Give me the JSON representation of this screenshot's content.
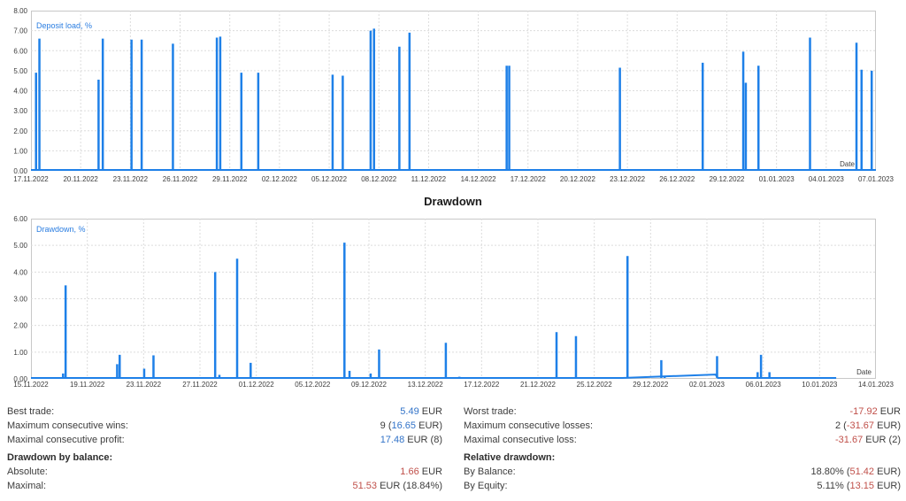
{
  "colors": {
    "series_blue": "#1e80e8",
    "legend_blue": "#2a7de1",
    "grid_dash": "#dcdcdc",
    "plot_border": "#c8c8c8",
    "axis_text": "#3c3c3c",
    "value_blue": "#3273c8",
    "value_red": "#c0504a"
  },
  "chart_data": [
    {
      "type": "line",
      "title": "",
      "legend": "Deposit load, %",
      "xlabel": "Date",
      "ylabel": "",
      "ylim": [
        0,
        8
      ],
      "grid": "dashed",
      "legend_position": "top-left-inside",
      "y_ticks": [
        "0.00",
        "1.00",
        "2.00",
        "3.00",
        "4.00",
        "5.00",
        "6.00",
        "7.00",
        "8.00"
      ],
      "x_ticks": [
        "17.11.2022",
        "20.11.2022",
        "23.11.2022",
        "26.11.2022",
        "29.11.2022",
        "02.12.2022",
        "05.12.2022",
        "08.12.2022",
        "11.12.2022",
        "14.12.2022",
        "17.12.2022",
        "20.12.2022",
        "23.12.2022",
        "26.12.2022",
        "29.12.2022",
        "01.01.2023",
        "04.01.2023",
        "07.01.2023"
      ],
      "baseline": [
        [
          0,
          0
        ],
        [
          1,
          0
        ]
      ],
      "spikes": [
        {
          "date": "17.11.2022",
          "x_frac": 0.006,
          "value": 4.9
        },
        {
          "date": "17.11.2022",
          "x_frac": 0.01,
          "value": 6.6
        },
        {
          "date": "21.11.2022",
          "x_frac": 0.08,
          "value": 4.55
        },
        {
          "date": "21.11.2022",
          "x_frac": 0.085,
          "value": 6.6
        },
        {
          "date": "23.11.2022",
          "x_frac": 0.119,
          "value": 6.55
        },
        {
          "date": "23.11.2022",
          "x_frac": 0.131,
          "value": 6.55
        },
        {
          "date": "25.11.2022",
          "x_frac": 0.168,
          "value": 6.35
        },
        {
          "date": "28.11.2022",
          "x_frac": 0.22,
          "value": 6.65
        },
        {
          "date": "28.11.2022",
          "x_frac": 0.224,
          "value": 6.7
        },
        {
          "date": "29.11.2022",
          "x_frac": 0.249,
          "value": 4.9
        },
        {
          "date": "30.11.2022",
          "x_frac": 0.269,
          "value": 4.9
        },
        {
          "date": "05.12.2022",
          "x_frac": 0.357,
          "value": 4.8
        },
        {
          "date": "05.12.2022",
          "x_frac": 0.369,
          "value": 4.75
        },
        {
          "date": "07.12.2022",
          "x_frac": 0.402,
          "value": 7.0
        },
        {
          "date": "08.12.2022",
          "x_frac": 0.406,
          "value": 7.1
        },
        {
          "date": "09.12.2022",
          "x_frac": 0.436,
          "value": 6.2
        },
        {
          "date": "09.12.2022",
          "x_frac": 0.448,
          "value": 6.9
        },
        {
          "date": "15.12.2022",
          "x_frac": 0.563,
          "value": 5.25
        },
        {
          "date": "16.12.2022",
          "x_frac": 0.566,
          "value": 5.25
        },
        {
          "date": "22.12.2022",
          "x_frac": 0.697,
          "value": 5.15
        },
        {
          "date": "27.12.2022",
          "x_frac": 0.795,
          "value": 5.4
        },
        {
          "date": "29.12.2022",
          "x_frac": 0.843,
          "value": 5.95
        },
        {
          "date": "30.12.2022",
          "x_frac": 0.846,
          "value": 4.4
        },
        {
          "date": "30.12.2022",
          "x_frac": 0.861,
          "value": 5.25
        },
        {
          "date": "03.01.2023",
          "x_frac": 0.922,
          "value": 6.65
        },
        {
          "date": "05.01.2023",
          "x_frac": 0.977,
          "value": 6.4
        },
        {
          "date": "06.01.2023",
          "x_frac": 0.983,
          "value": 5.05
        },
        {
          "date": "06.01.2023",
          "x_frac": 0.995,
          "value": 5.0
        }
      ]
    },
    {
      "type": "line",
      "title": "Drawdown",
      "legend": "Drawdown, %",
      "xlabel": "Date",
      "ylabel": "",
      "ylim": [
        0,
        6
      ],
      "grid": "dashed",
      "legend_position": "top-left-inside",
      "y_ticks": [
        "0.00",
        "1.00",
        "2.00",
        "3.00",
        "4.00",
        "5.00",
        "6.00"
      ],
      "x_ticks": [
        "15.11.2022",
        "19.11.2022",
        "23.11.2022",
        "27.11.2022",
        "01.12.2022",
        "05.12.2022",
        "09.12.2022",
        "13.12.2022",
        "17.12.2022",
        "21.12.2022",
        "25.12.2022",
        "29.12.2022",
        "02.01.2023",
        "06.01.2023",
        "10.01.2023",
        "14.01.2023"
      ],
      "baseline": [
        [
          0,
          0
        ],
        [
          0.7,
          0.0
        ],
        [
          0.81,
          0.13
        ],
        [
          0.813,
          0
        ],
        [
          0.953,
          0
        ]
      ],
      "spikes": [
        {
          "date": "17.11.2022",
          "x_frac": 0.038,
          "value": 0.2
        },
        {
          "date": "17.11.2022",
          "x_frac": 0.041,
          "value": 3.5
        },
        {
          "date": "21.11.2022",
          "x_frac": 0.102,
          "value": 0.55
        },
        {
          "date": "21.11.2022",
          "x_frac": 0.105,
          "value": 0.9
        },
        {
          "date": "23.11.2022",
          "x_frac": 0.134,
          "value": 0.38
        },
        {
          "date": "23.11.2022",
          "x_frac": 0.145,
          "value": 0.88
        },
        {
          "date": "28.11.2022",
          "x_frac": 0.218,
          "value": 4.0
        },
        {
          "date": "28.11.2022",
          "x_frac": 0.223,
          "value": 0.15
        },
        {
          "date": "29.11.2022",
          "x_frac": 0.244,
          "value": 4.5
        },
        {
          "date": "30.11.2022",
          "x_frac": 0.26,
          "value": 0.6
        },
        {
          "date": "07.12.2022",
          "x_frac": 0.371,
          "value": 5.1
        },
        {
          "date": "07.12.2022",
          "x_frac": 0.377,
          "value": 0.3
        },
        {
          "date": "09.12.2022",
          "x_frac": 0.402,
          "value": 0.2
        },
        {
          "date": "09.12.2022",
          "x_frac": 0.412,
          "value": 1.1
        },
        {
          "date": "14.12.2022",
          "x_frac": 0.491,
          "value": 1.35
        },
        {
          "date": "15.12.2022",
          "x_frac": 0.507,
          "value": 0.08
        },
        {
          "date": "22.12.2022",
          "x_frac": 0.622,
          "value": 1.75
        },
        {
          "date": "23.12.2022",
          "x_frac": 0.645,
          "value": 1.6
        },
        {
          "date": "27.12.2022",
          "x_frac": 0.706,
          "value": 4.6
        },
        {
          "date": "29.12.2022",
          "x_frac": 0.746,
          "value": 0.7
        },
        {
          "date": "30.12.2022",
          "x_frac": 0.75,
          "value": 0.1
        },
        {
          "date": "03.01.2023",
          "x_frac": 0.812,
          "value": 0.85
        },
        {
          "date": "05.01.2023",
          "x_frac": 0.86,
          "value": 0.25
        },
        {
          "date": "06.01.2023",
          "x_frac": 0.864,
          "value": 0.9
        },
        {
          "date": "06.01.2023",
          "x_frac": 0.874,
          "value": 0.25
        }
      ]
    }
  ],
  "stats": {
    "left": [
      {
        "label": "Best trade:",
        "value": [
          {
            "t": "5.49",
            "c": "blue"
          },
          {
            "t": " EUR",
            "c": "dark"
          }
        ]
      },
      {
        "label": "Maximum consecutive wins:",
        "value": [
          {
            "t": "9 (",
            "c": "dark"
          },
          {
            "t": "16.65",
            "c": "blue"
          },
          {
            "t": " EUR)",
            "c": "dark"
          }
        ]
      },
      {
        "label": "Maximal consecutive profit:",
        "value": [
          {
            "t": "17.48",
            "c": "blue"
          },
          {
            "t": " EUR (8)",
            "c": "dark"
          }
        ]
      },
      {
        "header": "Drawdown by balance:"
      },
      {
        "label": "Absolute:",
        "value": [
          {
            "t": "1.66",
            "c": "red"
          },
          {
            "t": " EUR",
            "c": "dark"
          }
        ]
      },
      {
        "label": "Maximal:",
        "value": [
          {
            "t": "51.53",
            "c": "red"
          },
          {
            "t": " EUR (18.84%)",
            "c": "dark"
          }
        ]
      }
    ],
    "right": [
      {
        "label": "Worst trade:",
        "value": [
          {
            "t": "-17.92",
            "c": "red"
          },
          {
            "t": " EUR",
            "c": "dark"
          }
        ]
      },
      {
        "label": "Maximum consecutive losses:",
        "value": [
          {
            "t": "2 (",
            "c": "dark"
          },
          {
            "t": "-31.67",
            "c": "red"
          },
          {
            "t": " EUR)",
            "c": "dark"
          }
        ]
      },
      {
        "label": "Maximal consecutive loss:",
        "value": [
          {
            "t": "-31.67",
            "c": "red"
          },
          {
            "t": " EUR (2)",
            "c": "dark"
          }
        ]
      },
      {
        "header": "Relative drawdown:"
      },
      {
        "label": "By Balance:",
        "value": [
          {
            "t": "18.80% (",
            "c": "dark"
          },
          {
            "t": "51.42",
            "c": "red"
          },
          {
            "t": " EUR)",
            "c": "dark"
          }
        ]
      },
      {
        "label": "By Equity:",
        "value": [
          {
            "t": "5.11% (",
            "c": "dark"
          },
          {
            "t": "13.15",
            "c": "red"
          },
          {
            "t": " EUR)",
            "c": "dark"
          }
        ]
      }
    ]
  }
}
